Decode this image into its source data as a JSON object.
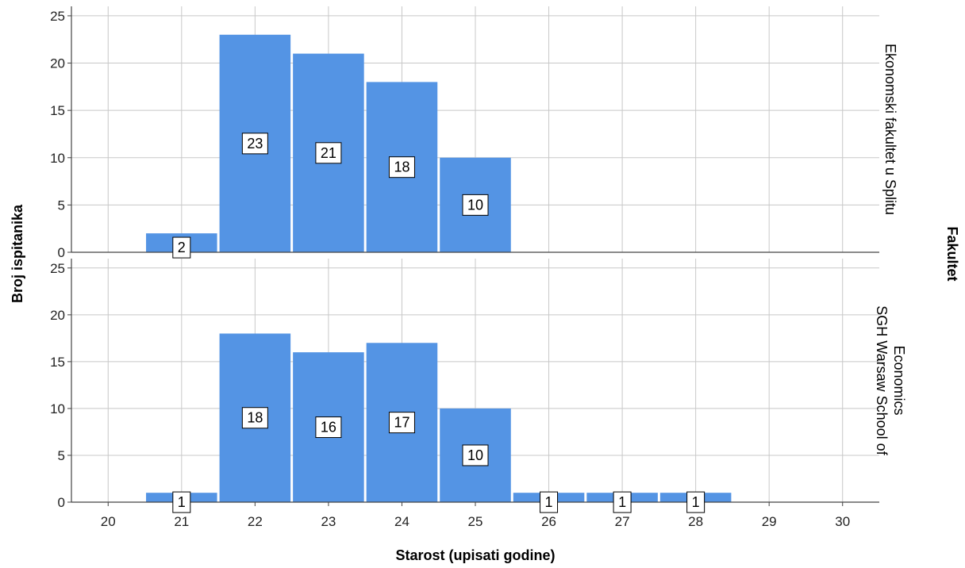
{
  "chart_data": {
    "type": "bar",
    "title": "",
    "xlabel": "Starost (upisati godine)",
    "ylabel": "Broj ispitanika",
    "panel_group_label": "Fakultet",
    "x_ticks": [
      20,
      21,
      22,
      23,
      24,
      25,
      26,
      27,
      28,
      29,
      30
    ],
    "y_ticks": [
      0,
      5,
      10,
      15,
      20,
      25
    ],
    "ylim": [
      0,
      26
    ],
    "xlim": [
      19.5,
      30.5
    ],
    "grid": true,
    "bar_color": "#5494e4",
    "panels": [
      {
        "name": "Ekonomski fakultet u Splitu",
        "label_lines": [
          "Ekonomski fakultet u Splitu"
        ],
        "x": [
          21,
          22,
          23,
          24,
          25
        ],
        "values": [
          2,
          23,
          21,
          18,
          10
        ]
      },
      {
        "name": "SGH Warsaw School of Economics",
        "label_lines": [
          "SGH Warsaw School of",
          "Economics"
        ],
        "x": [
          21,
          22,
          23,
          24,
          25,
          26,
          27,
          28
        ],
        "values": [
          1,
          18,
          16,
          17,
          10,
          1,
          1,
          1
        ]
      }
    ]
  }
}
